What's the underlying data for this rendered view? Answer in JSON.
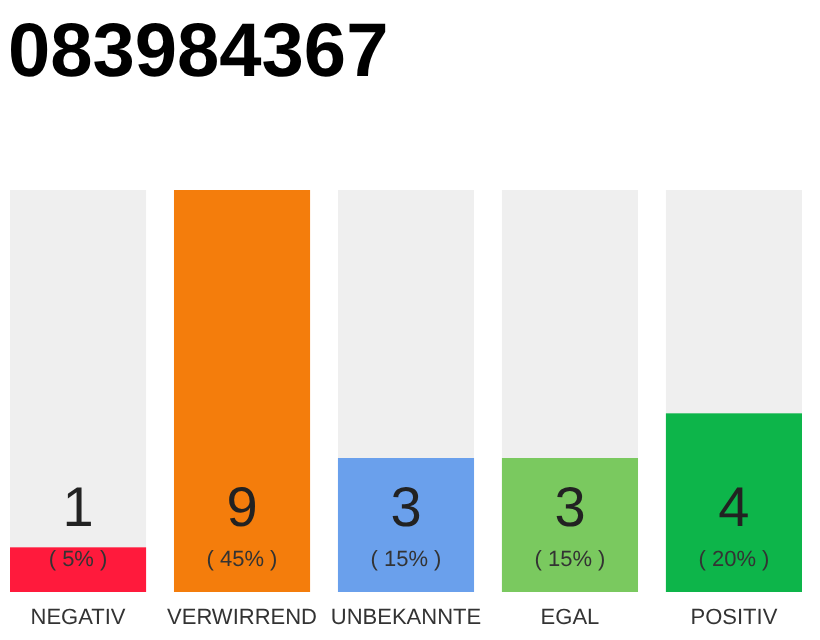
{
  "chart_data": {
    "type": "bar",
    "title": "083984367",
    "categories": [
      "NEGATIV",
      "VERWIRREND",
      "UNBEKANNTE",
      "EGAL",
      "POSITIV"
    ],
    "values": [
      1,
      9,
      3,
      3,
      4
    ],
    "colors": [
      "#ff1a3c",
      "#f47d0c",
      "#6aa0ec",
      "#7ac95f",
      "#0db54a"
    ],
    "ylim": [
      0,
      9
    ],
    "data_labels": true,
    "annotations": [
      "( 5% )",
      "( 45% )",
      "( 15% )",
      "( 15% )",
      "( 20% )"
    ]
  }
}
